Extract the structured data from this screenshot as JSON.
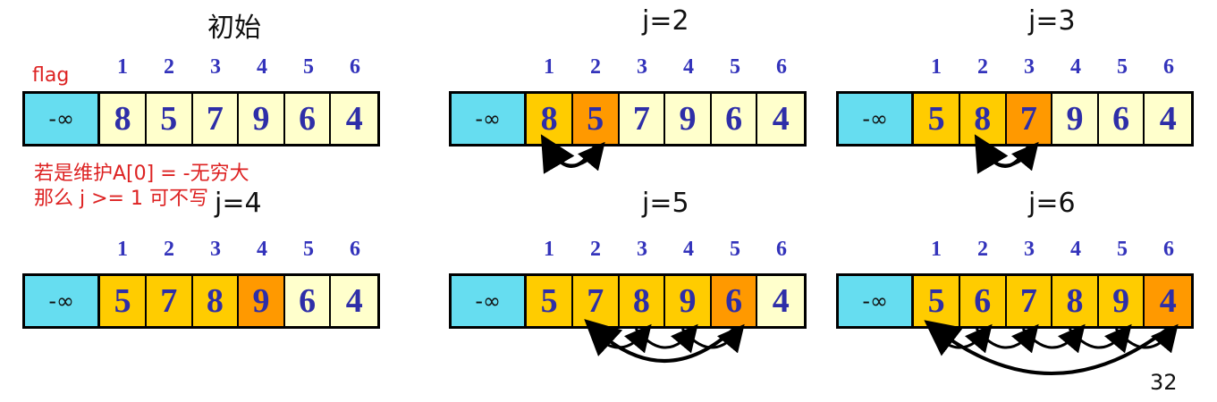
{
  "flag_label": "flag",
  "sentinel_label": "-∞",
  "note_lines": [
    "若是维护A[0] = -无穷大",
    "那么 j >= 1 可不写"
  ],
  "page_number": "32",
  "colors": {
    "sentinel": "#66ddf0",
    "plain": "#ffffcc",
    "sorted": "#ffcc00",
    "current": "#ff9900",
    "digit": "#2e2ea8",
    "index": "#3333bb",
    "note": "#dd2222"
  },
  "panels": [
    {
      "title": "初始",
      "indices": [
        "1",
        "2",
        "3",
        "4",
        "5",
        "6"
      ],
      "values": [
        "8",
        "5",
        "7",
        "9",
        "6",
        "4"
      ],
      "states": [
        "plain",
        "plain",
        "plain",
        "plain",
        "plain",
        "plain"
      ],
      "current": null
    },
    {
      "title": "j=2",
      "indices": [
        "1",
        "2",
        "3",
        "4",
        "5",
        "6"
      ],
      "values": [
        "8",
        "5",
        "7",
        "9",
        "6",
        "4"
      ],
      "states": [
        "sorted",
        "current",
        "plain",
        "plain",
        "plain",
        "plain"
      ],
      "current": 2,
      "insert_at": 1
    },
    {
      "title": "j=3",
      "indices": [
        "1",
        "2",
        "3",
        "4",
        "5",
        "6"
      ],
      "values": [
        "5",
        "8",
        "7",
        "9",
        "6",
        "4"
      ],
      "states": [
        "sorted",
        "sorted",
        "current",
        "plain",
        "plain",
        "plain"
      ],
      "current": 3,
      "insert_at": 2
    },
    {
      "title": "j=4",
      "indices": [
        "1",
        "2",
        "3",
        "4",
        "5",
        "6"
      ],
      "values": [
        "5",
        "7",
        "8",
        "9",
        "6",
        "4"
      ],
      "states": [
        "sorted",
        "sorted",
        "sorted",
        "current",
        "plain",
        "plain"
      ],
      "current": 4,
      "insert_at": 4
    },
    {
      "title": "j=5",
      "indices": [
        "1",
        "2",
        "3",
        "4",
        "5",
        "6"
      ],
      "values": [
        "5",
        "7",
        "8",
        "9",
        "6",
        "4"
      ],
      "states": [
        "sorted",
        "sorted",
        "sorted",
        "sorted",
        "current",
        "plain"
      ],
      "current": 5,
      "insert_at": 2
    },
    {
      "title": "j=6",
      "indices": [
        "1",
        "2",
        "3",
        "4",
        "5",
        "6"
      ],
      "values": [
        "5",
        "6",
        "7",
        "8",
        "9",
        "4"
      ],
      "states": [
        "sorted",
        "sorted",
        "sorted",
        "sorted",
        "sorted",
        "current"
      ],
      "current": 6,
      "insert_at": 1
    }
  ]
}
